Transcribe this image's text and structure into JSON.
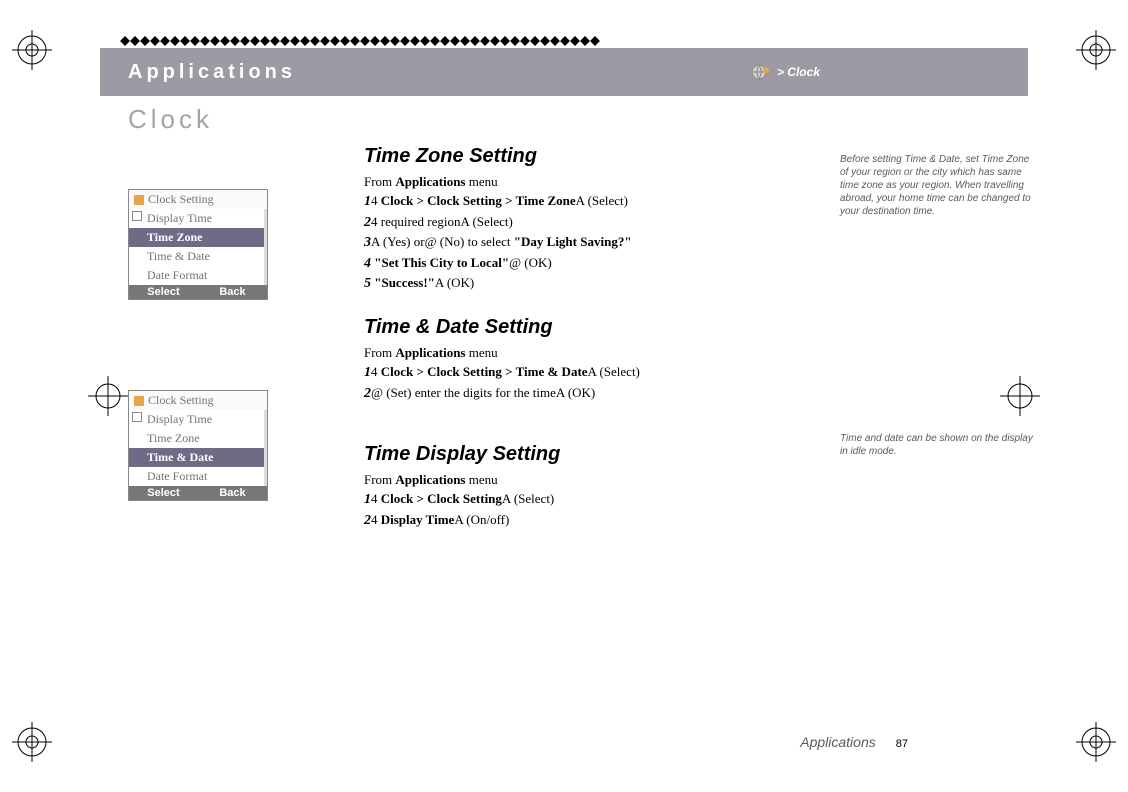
{
  "header": {
    "title": "Applications",
    "breadcrumb": "> Clock"
  },
  "section_title": "Clock",
  "phone1": {
    "title": "Clock Setting",
    "items": [
      "Display Time",
      "Time Zone",
      "Time & Date",
      "Date Format"
    ],
    "selected_index": 1,
    "soft_left": "Select",
    "soft_right": "Back"
  },
  "phone2": {
    "title": "Clock Setting",
    "items": [
      "Display Time",
      "Time Zone",
      "Time & Date",
      "Date Format"
    ],
    "selected_index": 2,
    "soft_left": "Select",
    "soft_right": "Back"
  },
  "blocks": {
    "tz": {
      "heading": "Time Zone Setting",
      "from": "From Applications menu",
      "steps": [
        {
          "n": "1",
          "html": "4   <b>Clock > Clock Setting > Time Zone</b>A    (Select)"
        },
        {
          "n": "2",
          "html": "4   required regionA    (Select)"
        },
        {
          "n": "3",
          "html": "A    (Yes) or@    (No) to select <b>\"Day Light Saving?\"</b>"
        },
        {
          "n": "4",
          "html": " <b>\"Set This City to Local\"</b>@    (OK)"
        },
        {
          "n": "5",
          "html": " <b>\"Success!\"</b>A    (OK)"
        }
      ]
    },
    "td": {
      "heading": "Time & Date Setting",
      "from": "From Applications menu",
      "steps": [
        {
          "n": "1",
          "html": "4   <b>Clock > Clock Setting > Time & Date</b>A    (Select)"
        },
        {
          "n": "2",
          "html": "@    (Set) enter the digits for the timeA    (OK)"
        }
      ]
    },
    "disp": {
      "heading": "Time Display Setting",
      "from": "From Applications menu",
      "steps": [
        {
          "n": "1",
          "html": "4   <b>Clock > Clock Setting</b>A    (Select)"
        },
        {
          "n": "2",
          "html": "4   <b>Display Time</b>A    (On/off)"
        }
      ]
    }
  },
  "notes": {
    "n1": "Before setting Time & Date, set Time Zone of your region or the city which has same time zone as your region. When travelling abroad, your home time can be changed to your destination time.",
    "n2": "Time and date can be shown on the display in idle mode."
  },
  "footer": {
    "label": "Applications",
    "page": "87"
  },
  "colors": {
    "header_bg": "#9e9aa3",
    "accent_text": "#a8a1ab",
    "phone_selected_bg": "#706a87"
  }
}
